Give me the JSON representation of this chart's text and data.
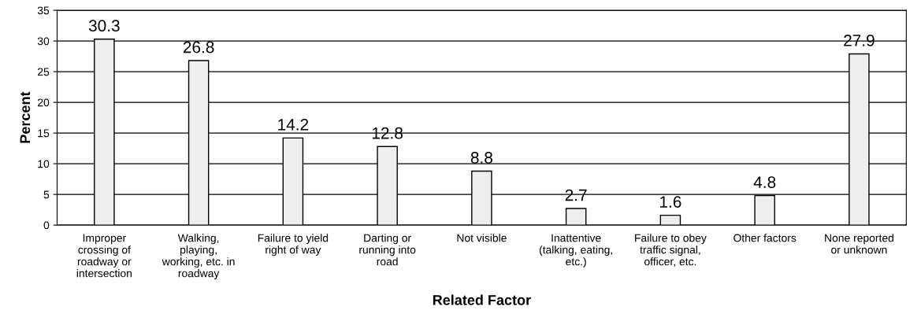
{
  "chart_data": {
    "type": "bar",
    "xlabel": "Related Factor",
    "ylabel": "Percent",
    "categories": [
      "Improper\ncrossing of\nroadway or\nintersection",
      "Walking,\nplaying,\nworking, etc. in\nroadway",
      "Failure to yield\nright of way",
      "Darting or\nrunning into\nroad",
      "Not visible",
      "Inattentive\n(talking, eating,\netc.)",
      "Failure to obey\ntraffic signal,\nofficer, etc.",
      "Other factors",
      "None reported\nor unknown"
    ],
    "values": [
      30.3,
      26.8,
      14.2,
      12.8,
      8.8,
      2.7,
      1.6,
      4.8,
      27.9
    ],
    "color": "#eeeeee",
    "ylim": [
      0,
      35
    ],
    "yticks": [
      0,
      5,
      10,
      15,
      20,
      25,
      30,
      35
    ],
    "grid": "y",
    "data_labels": true,
    "legend": false
  }
}
